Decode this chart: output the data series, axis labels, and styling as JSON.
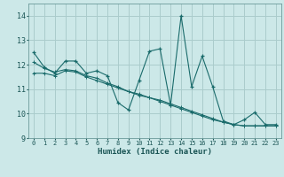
{
  "xlabel": "Humidex (Indice chaleur)",
  "xlim": [
    -0.5,
    23.5
  ],
  "ylim": [
    9.0,
    14.5
  ],
  "yticks": [
    9,
    10,
    11,
    12,
    13,
    14
  ],
  "xticks": [
    0,
    1,
    2,
    3,
    4,
    5,
    6,
    7,
    8,
    9,
    10,
    11,
    12,
    13,
    14,
    15,
    16,
    17,
    18,
    19,
    20,
    21,
    22,
    23
  ],
  "bg_color": "#cce8e8",
  "grid_color": "#aacccc",
  "line_color": "#1a6b6b",
  "series1": [
    12.5,
    11.9,
    11.65,
    12.15,
    12.15,
    11.65,
    11.75,
    11.55,
    10.45,
    10.15,
    11.35,
    12.55,
    12.65,
    10.35,
    14.0,
    11.1,
    12.35,
    11.1,
    9.7,
    9.55,
    9.75,
    10.05,
    9.55,
    9.55
  ],
  "series2": [
    11.65,
    11.65,
    11.55,
    11.75,
    11.7,
    11.5,
    11.35,
    11.2,
    11.05,
    10.9,
    10.75,
    10.65,
    10.5,
    10.35,
    10.2,
    10.05,
    9.9,
    9.75,
    9.65,
    9.55,
    9.5,
    9.5,
    9.5,
    9.5
  ],
  "series3": [
    12.1,
    11.85,
    11.7,
    11.8,
    11.75,
    11.55,
    11.45,
    11.25,
    11.1,
    10.9,
    10.8,
    10.65,
    10.55,
    10.4,
    10.25,
    10.1,
    9.95,
    9.8,
    9.65,
    9.55,
    9.5,
    9.5,
    9.5,
    9.5
  ]
}
